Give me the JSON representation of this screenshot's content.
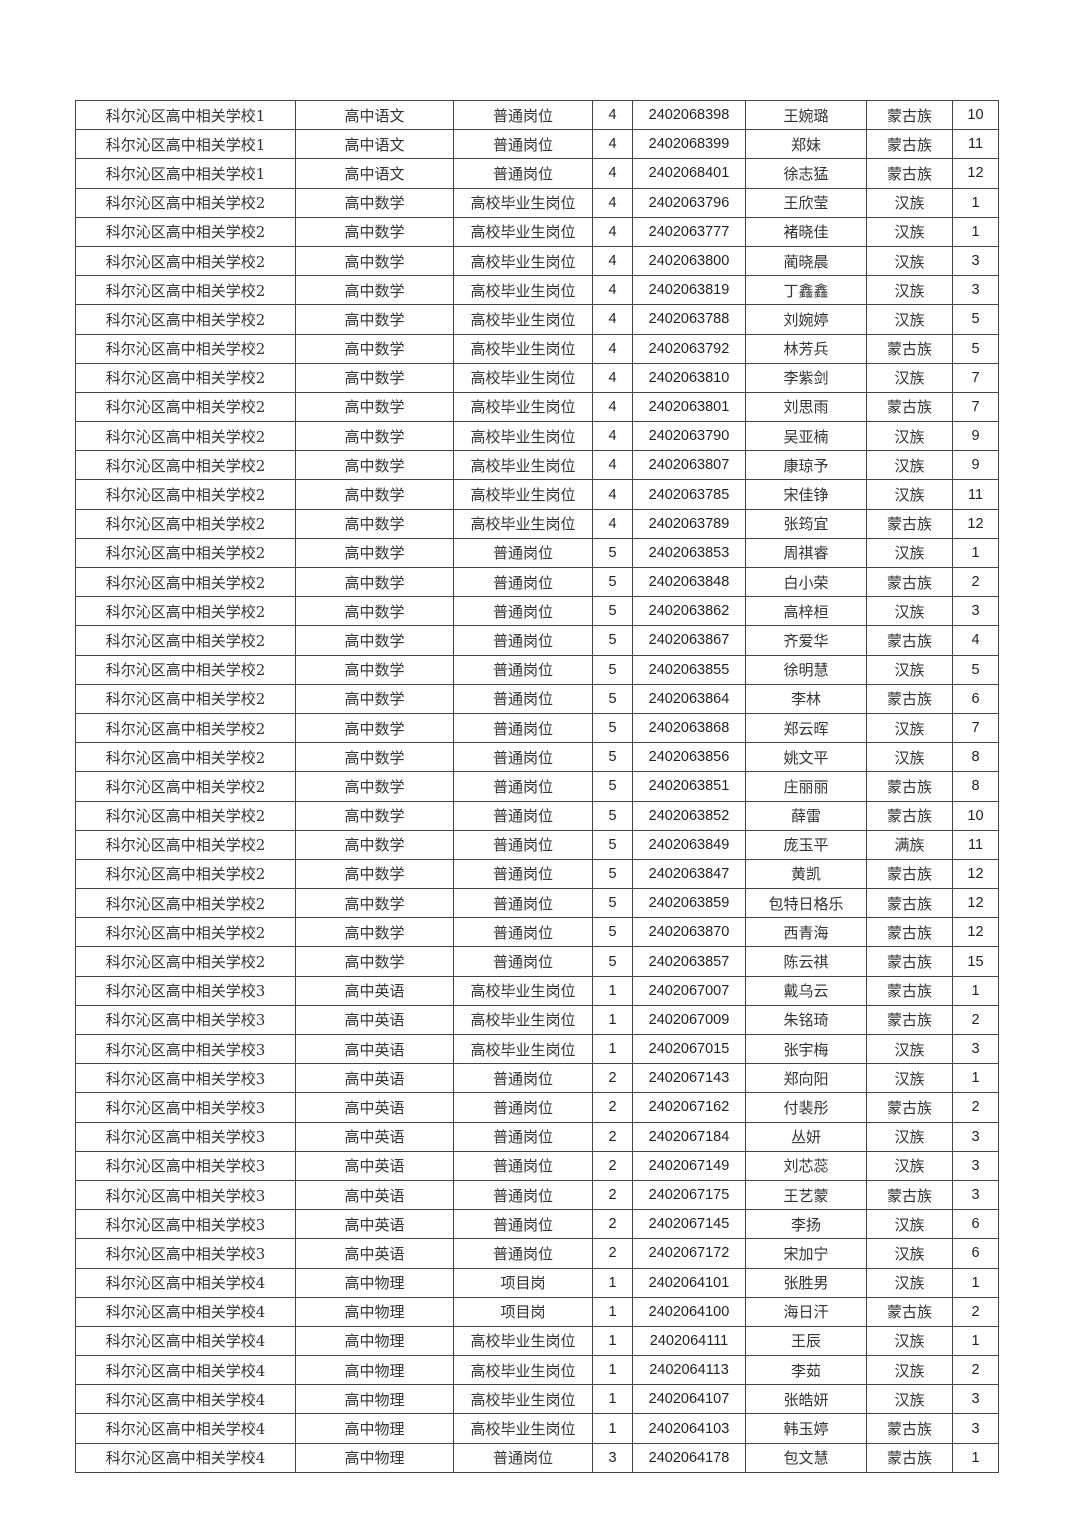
{
  "table": {
    "rows": [
      [
        "科尔沁区高中相关学校1",
        "高中语文",
        "普通岗位",
        "4",
        "2402068398",
        "王婉璐",
        "蒙古族",
        "10"
      ],
      [
        "科尔沁区高中相关学校1",
        "高中语文",
        "普通岗位",
        "4",
        "2402068399",
        "郑妹",
        "蒙古族",
        "11"
      ],
      [
        "科尔沁区高中相关学校1",
        "高中语文",
        "普通岗位",
        "4",
        "2402068401",
        "徐志猛",
        "蒙古族",
        "12"
      ],
      [
        "科尔沁区高中相关学校2",
        "高中数学",
        "高校毕业生岗位",
        "4",
        "2402063796",
        "王欣莹",
        "汉族",
        "1"
      ],
      [
        "科尔沁区高中相关学校2",
        "高中数学",
        "高校毕业生岗位",
        "4",
        "2402063777",
        "褚晓佳",
        "汉族",
        "1"
      ],
      [
        "科尔沁区高中相关学校2",
        "高中数学",
        "高校毕业生岗位",
        "4",
        "2402063800",
        "蔺晓晨",
        "汉族",
        "3"
      ],
      [
        "科尔沁区高中相关学校2",
        "高中数学",
        "高校毕业生岗位",
        "4",
        "2402063819",
        "丁鑫鑫",
        "汉族",
        "3"
      ],
      [
        "科尔沁区高中相关学校2",
        "高中数学",
        "高校毕业生岗位",
        "4",
        "2402063788",
        "刘婉婷",
        "汉族",
        "5"
      ],
      [
        "科尔沁区高中相关学校2",
        "高中数学",
        "高校毕业生岗位",
        "4",
        "2402063792",
        "林芳兵",
        "蒙古族",
        "5"
      ],
      [
        "科尔沁区高中相关学校2",
        "高中数学",
        "高校毕业生岗位",
        "4",
        "2402063810",
        "李紫剑",
        "汉族",
        "7"
      ],
      [
        "科尔沁区高中相关学校2",
        "高中数学",
        "高校毕业生岗位",
        "4",
        "2402063801",
        "刘思雨",
        "蒙古族",
        "7"
      ],
      [
        "科尔沁区高中相关学校2",
        "高中数学",
        "高校毕业生岗位",
        "4",
        "2402063790",
        "吴亚楠",
        "汉族",
        "9"
      ],
      [
        "科尔沁区高中相关学校2",
        "高中数学",
        "高校毕业生岗位",
        "4",
        "2402063807",
        "康琼予",
        "汉族",
        "9"
      ],
      [
        "科尔沁区高中相关学校2",
        "高中数学",
        "高校毕业生岗位",
        "4",
        "2402063785",
        "宋佳铮",
        "汉族",
        "11"
      ],
      [
        "科尔沁区高中相关学校2",
        "高中数学",
        "高校毕业生岗位",
        "4",
        "2402063789",
        "张筠宜",
        "蒙古族",
        "12"
      ],
      [
        "科尔沁区高中相关学校2",
        "高中数学",
        "普通岗位",
        "5",
        "2402063853",
        "周祺睿",
        "汉族",
        "1"
      ],
      [
        "科尔沁区高中相关学校2",
        "高中数学",
        "普通岗位",
        "5",
        "2402063848",
        "白小荣",
        "蒙古族",
        "2"
      ],
      [
        "科尔沁区高中相关学校2",
        "高中数学",
        "普通岗位",
        "5",
        "2402063862",
        "高梓桓",
        "汉族",
        "3"
      ],
      [
        "科尔沁区高中相关学校2",
        "高中数学",
        "普通岗位",
        "5",
        "2402063867",
        "齐爱华",
        "蒙古族",
        "4"
      ],
      [
        "科尔沁区高中相关学校2",
        "高中数学",
        "普通岗位",
        "5",
        "2402063855",
        "徐明慧",
        "汉族",
        "5"
      ],
      [
        "科尔沁区高中相关学校2",
        "高中数学",
        "普通岗位",
        "5",
        "2402063864",
        "李林",
        "蒙古族",
        "6"
      ],
      [
        "科尔沁区高中相关学校2",
        "高中数学",
        "普通岗位",
        "5",
        "2402063868",
        "郑云晖",
        "汉族",
        "7"
      ],
      [
        "科尔沁区高中相关学校2",
        "高中数学",
        "普通岗位",
        "5",
        "2402063856",
        "姚文平",
        "汉族",
        "8"
      ],
      [
        "科尔沁区高中相关学校2",
        "高中数学",
        "普通岗位",
        "5",
        "2402063851",
        "庄丽丽",
        "蒙古族",
        "8"
      ],
      [
        "科尔沁区高中相关学校2",
        "高中数学",
        "普通岗位",
        "5",
        "2402063852",
        "薛雷",
        "蒙古族",
        "10"
      ],
      [
        "科尔沁区高中相关学校2",
        "高中数学",
        "普通岗位",
        "5",
        "2402063849",
        "庞玉平",
        "满族",
        "11"
      ],
      [
        "科尔沁区高中相关学校2",
        "高中数学",
        "普通岗位",
        "5",
        "2402063847",
        "黄凯",
        "蒙古族",
        "12"
      ],
      [
        "科尔沁区高中相关学校2",
        "高中数学",
        "普通岗位",
        "5",
        "2402063859",
        "包特日格乐",
        "蒙古族",
        "12"
      ],
      [
        "科尔沁区高中相关学校2",
        "高中数学",
        "普通岗位",
        "5",
        "2402063870",
        "西青海",
        "蒙古族",
        "12"
      ],
      [
        "科尔沁区高中相关学校2",
        "高中数学",
        "普通岗位",
        "5",
        "2402063857",
        "陈云祺",
        "蒙古族",
        "15"
      ],
      [
        "科尔沁区高中相关学校3",
        "高中英语",
        "高校毕业生岗位",
        "1",
        "2402067007",
        "戴乌云",
        "蒙古族",
        "1"
      ],
      [
        "科尔沁区高中相关学校3",
        "高中英语",
        "高校毕业生岗位",
        "1",
        "2402067009",
        "朱铭琦",
        "蒙古族",
        "2"
      ],
      [
        "科尔沁区高中相关学校3",
        "高中英语",
        "高校毕业生岗位",
        "1",
        "2402067015",
        "张宇梅",
        "汉族",
        "3"
      ],
      [
        "科尔沁区高中相关学校3",
        "高中英语",
        "普通岗位",
        "2",
        "2402067143",
        "郑向阳",
        "汉族",
        "1"
      ],
      [
        "科尔沁区高中相关学校3",
        "高中英语",
        "普通岗位",
        "2",
        "2402067162",
        "付裴彤",
        "蒙古族",
        "2"
      ],
      [
        "科尔沁区高中相关学校3",
        "高中英语",
        "普通岗位",
        "2",
        "2402067184",
        "丛妍",
        "汉族",
        "3"
      ],
      [
        "科尔沁区高中相关学校3",
        "高中英语",
        "普通岗位",
        "2",
        "2402067149",
        "刘芯蕊",
        "汉族",
        "3"
      ],
      [
        "科尔沁区高中相关学校3",
        "高中英语",
        "普通岗位",
        "2",
        "2402067175",
        "王艺蒙",
        "蒙古族",
        "3"
      ],
      [
        "科尔沁区高中相关学校3",
        "高中英语",
        "普通岗位",
        "2",
        "2402067145",
        "李扬",
        "汉族",
        "6"
      ],
      [
        "科尔沁区高中相关学校3",
        "高中英语",
        "普通岗位",
        "2",
        "2402067172",
        "宋加宁",
        "汉族",
        "6"
      ],
      [
        "科尔沁区高中相关学校4",
        "高中物理",
        "项目岗",
        "1",
        "2402064101",
        "张胜男",
        "汉族",
        "1"
      ],
      [
        "科尔沁区高中相关学校4",
        "高中物理",
        "项目岗",
        "1",
        "2402064100",
        "海日汗",
        "蒙古族",
        "2"
      ],
      [
        "科尔沁区高中相关学校4",
        "高中物理",
        "高校毕业生岗位",
        "1",
        "2402064111",
        "王辰",
        "汉族",
        "1"
      ],
      [
        "科尔沁区高中相关学校4",
        "高中物理",
        "高校毕业生岗位",
        "1",
        "2402064113",
        "李茹",
        "汉族",
        "2"
      ],
      [
        "科尔沁区高中相关学校4",
        "高中物理",
        "高校毕业生岗位",
        "1",
        "2402064107",
        "张皓妍",
        "汉族",
        "3"
      ],
      [
        "科尔沁区高中相关学校4",
        "高中物理",
        "高校毕业生岗位",
        "1",
        "2402064103",
        "韩玉婷",
        "蒙古族",
        "3"
      ],
      [
        "科尔沁区高中相关学校4",
        "高中物理",
        "普通岗位",
        "3",
        "2402064178",
        "包文慧",
        "蒙古族",
        "1"
      ]
    ]
  }
}
